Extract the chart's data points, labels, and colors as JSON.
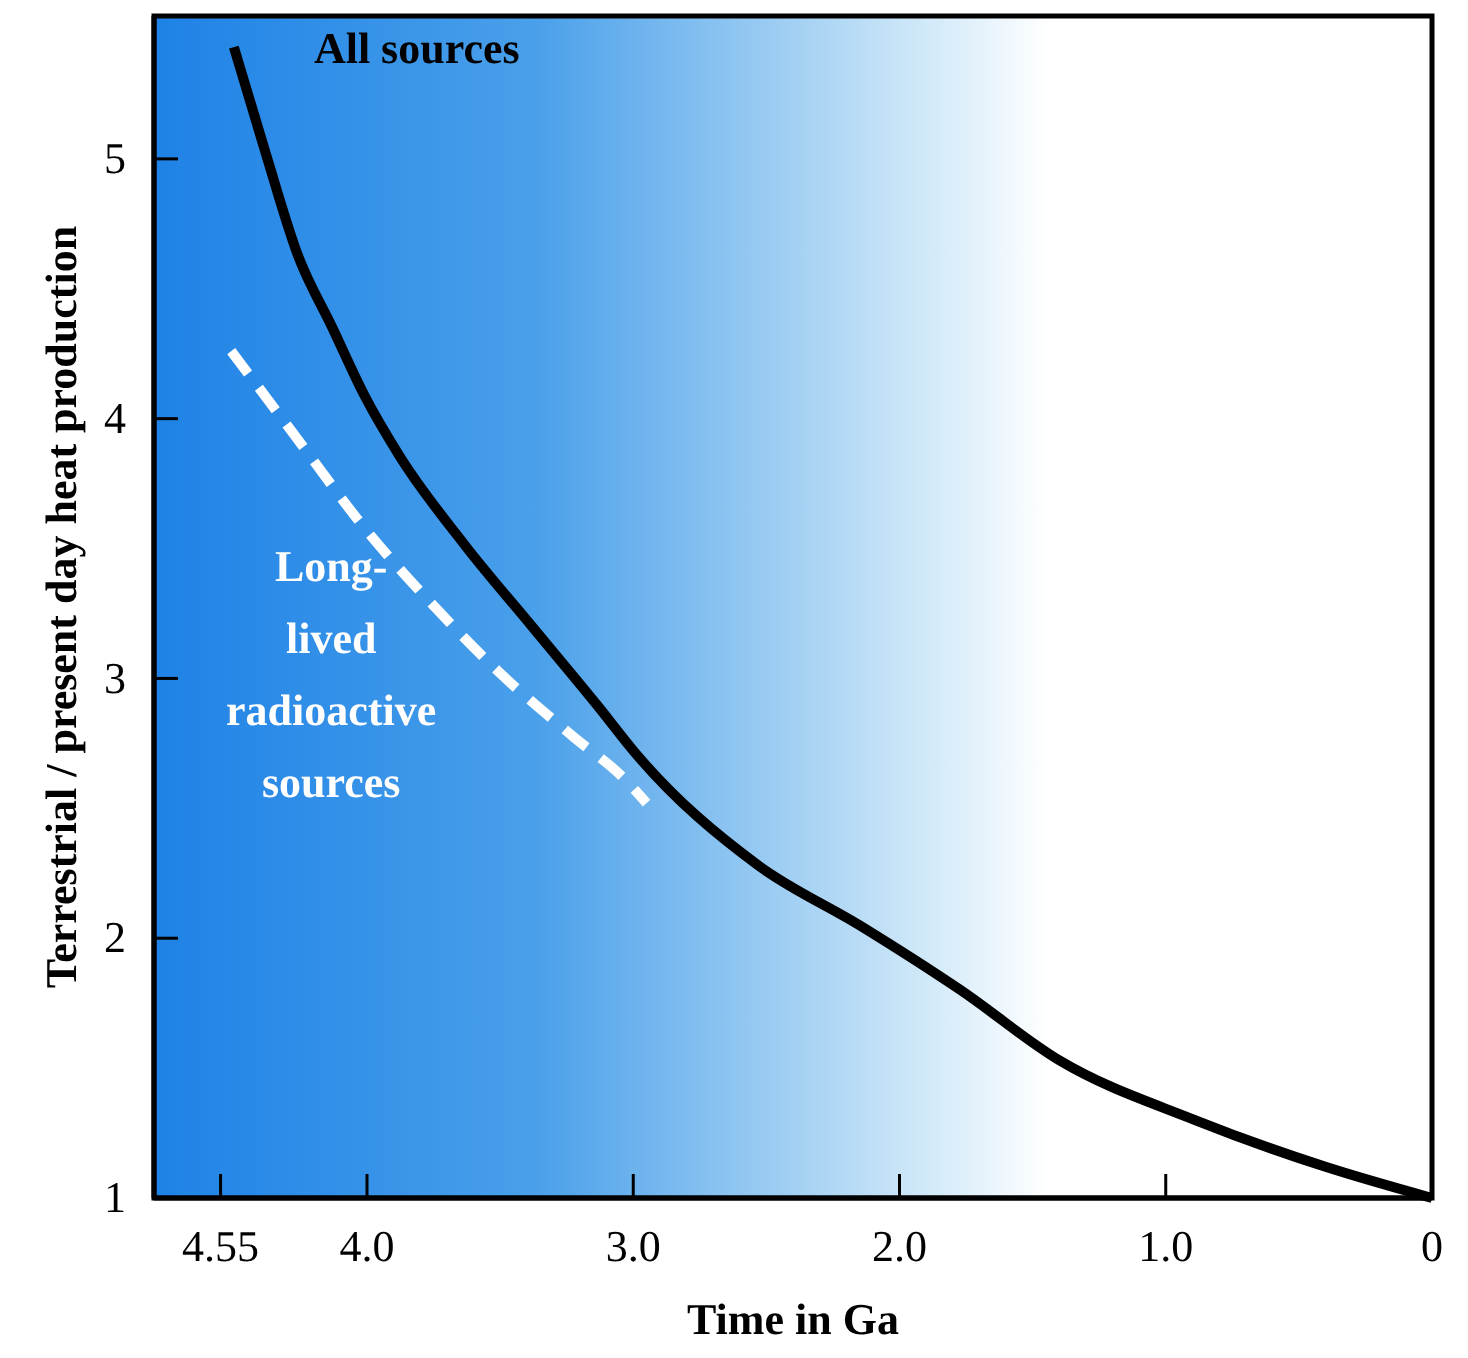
{
  "chart_data": {
    "type": "line",
    "xlabel": "Time in Ga",
    "ylabel": "Terrestrial / present day heat production",
    "xlim": [
      4.8,
      0
    ],
    "ylim": [
      1,
      5.55
    ],
    "xticks": [
      4.55,
      {
        "value": 4,
        "label": "4.0"
      },
      {
        "value": 3,
        "label": "3.0"
      },
      {
        "value": 2,
        "label": "2.0"
      },
      {
        "value": 1,
        "label": "1.0"
      },
      0
    ],
    "yticks": [
      1,
      2,
      3,
      4,
      5
    ],
    "grid": false,
    "series": [
      {
        "name": "All sources",
        "color": "#000000",
        "line_style": "solid",
        "x": [
          4.5,
          4.38,
          4.26,
          4.13,
          4.01,
          3.88,
          3.63,
          3.38,
          3.13,
          2.99,
          2.53,
          2.15,
          1.77,
          1.4,
          0.89,
          0.4,
          0
        ],
        "values": [
          5.43,
          5.02,
          4.63,
          4.35,
          4.09,
          3.86,
          3.51,
          3.2,
          2.89,
          2.71,
          2.28,
          2.05,
          1.8,
          1.53,
          1.3,
          1.12,
          1
        ]
      },
      {
        "name": "Long-lived radioactive sources",
        "color": "#ffffff",
        "line_style": "dashed",
        "x": [
          4.51,
          4.26,
          4.01,
          3.75,
          3.5,
          3.23,
          3.03,
          2.95
        ],
        "values": [
          4.26,
          3.92,
          3.58,
          3.28,
          3.02,
          2.78,
          2.61,
          2.52
        ]
      }
    ]
  }
}
